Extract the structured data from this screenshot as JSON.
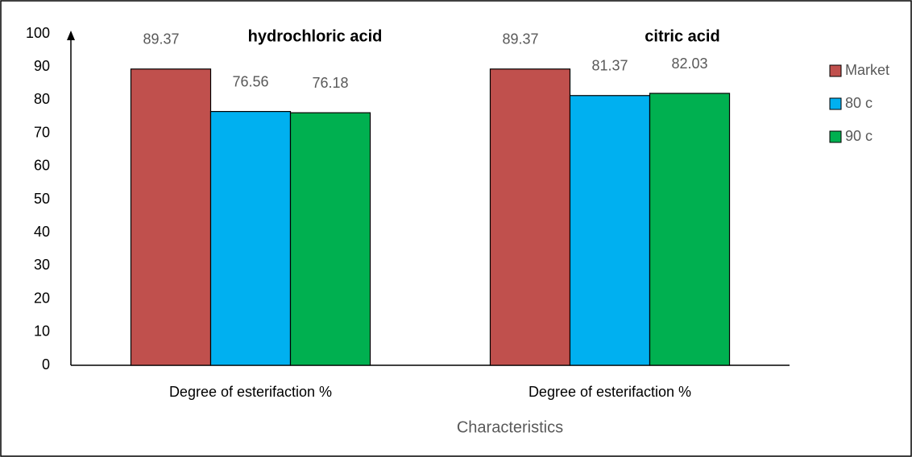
{
  "chart_data": {
    "type": "bar",
    "categories": [
      "Degree of esterifaction %",
      "Degree of esterifaction %"
    ],
    "series": [
      {
        "name": "Market",
        "color": "#c0504d",
        "values": [
          89.37,
          89.37
        ]
      },
      {
        "name": "80 c",
        "color": "#00b0f0",
        "values": [
          76.56,
          81.37
        ]
      },
      {
        "name": "90 c",
        "color": "#00b050",
        "values": [
          76.18,
          82.03
        ]
      }
    ],
    "annotations": [
      "hydrochloric acid",
      "citric acid"
    ],
    "x_label": "Characteristics",
    "ylim": [
      0,
      100
    ],
    "yticks": [
      0,
      10,
      20,
      30,
      40,
      50,
      60,
      70,
      80,
      90,
      100
    ],
    "grid": false,
    "legend": "right"
  }
}
